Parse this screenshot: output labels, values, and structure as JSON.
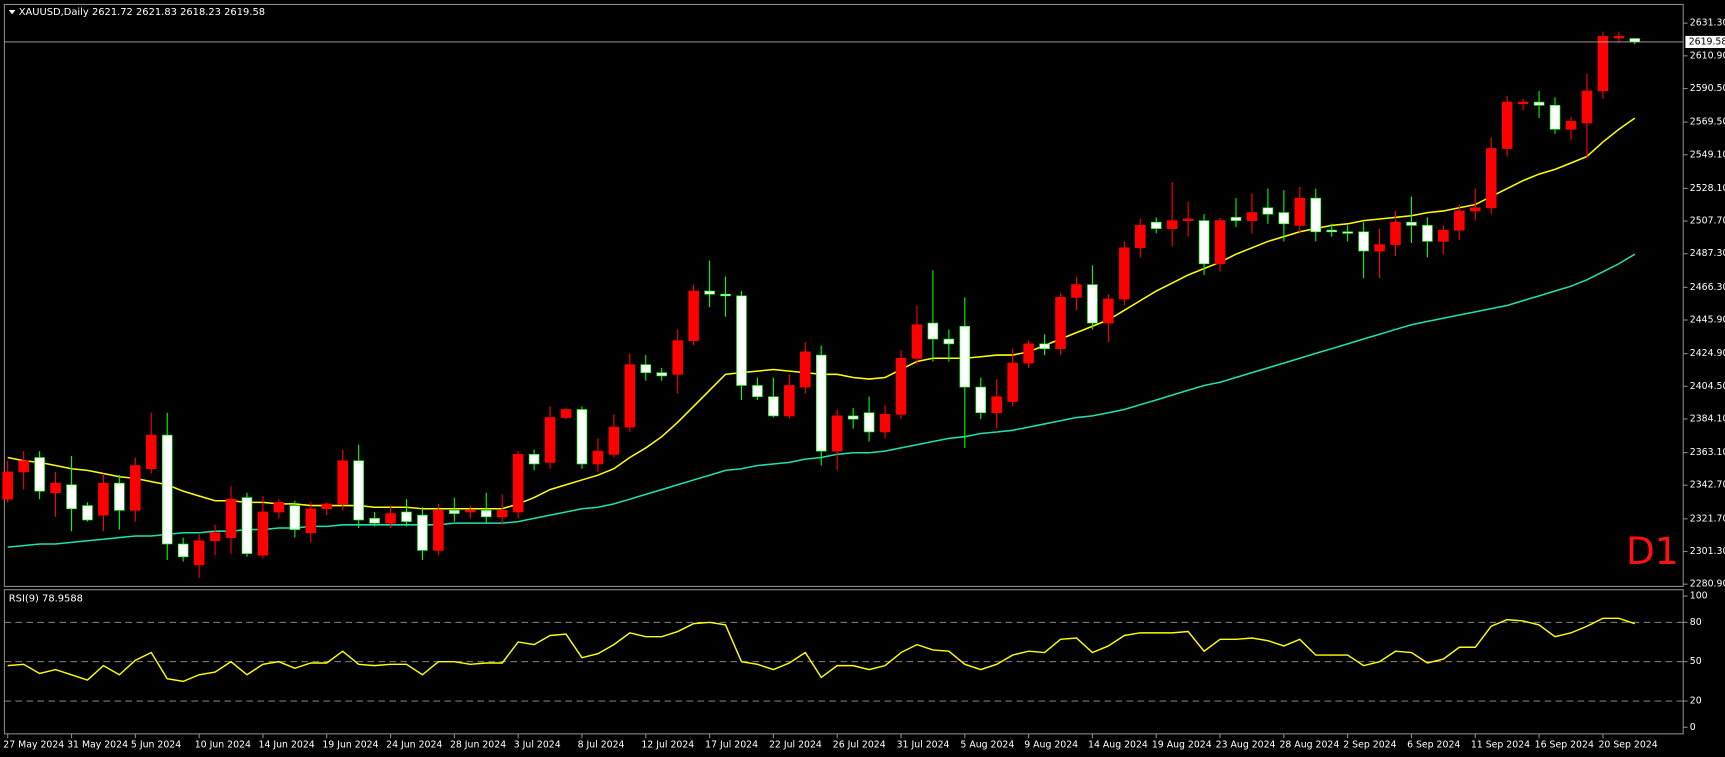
{
  "chart_data": [
    {
      "type": "candlestick",
      "symbol": "XAUUSD,Daily",
      "timeframe_label": "D1",
      "up_color": "#ff0000",
      "down_color": "#ffffff",
      "down_wick_color": "#00ff00",
      "categories": [
        "27 May 2024",
        null,
        null,
        null,
        "31 May 2024",
        null,
        null,
        null,
        "5 Jun 2024",
        null,
        null,
        null,
        "10 Jun 2024",
        null,
        null,
        null,
        "14 Jun 2024",
        null,
        null,
        null,
        "19 Jun 2024",
        null,
        null,
        null,
        "24 Jun 2024",
        null,
        null,
        null,
        "28 Jun 2024",
        null,
        null,
        null,
        "3 Jul 2024",
        null,
        null,
        null,
        "8 Jul 2024",
        null,
        null,
        null,
        "12 Jul 2024",
        null,
        null,
        null,
        "17 Jul 2024",
        null,
        null,
        null,
        "22 Jul 2024",
        null,
        null,
        null,
        "26 Jul 2024",
        null,
        null,
        null,
        "31 Jul 2024",
        null,
        null,
        null,
        "5 Aug 2024",
        null,
        null,
        null,
        "9 Aug 2024",
        null,
        null,
        null,
        "14 Aug 2024",
        null,
        null,
        null,
        "19 Aug 2024",
        null,
        null,
        null,
        "23 Aug 2024",
        null,
        null,
        null,
        "28 Aug 2024",
        null,
        null,
        null,
        "2 Sep 2024",
        null,
        null,
        null,
        "6 Sep 2024",
        null,
        null,
        null,
        "11 Sep 2024",
        null,
        null,
        null,
        "16 Sep 2024",
        null,
        null,
        null,
        "20 Sep 2024",
        null,
        null
      ],
      "open": [
        2334,
        2351,
        2360,
        2338,
        2343,
        2330,
        2324,
        2344,
        2327,
        2353,
        2374,
        2306,
        2293,
        2308,
        2310,
        2335,
        2299,
        2326,
        2330,
        2313,
        2328,
        2331,
        2358,
        2322,
        2319,
        2326,
        2324,
        2302,
        2327,
        2326,
        2327,
        2323,
        2326,
        2362,
        2357,
        2385,
        2390,
        2356,
        2362,
        2379,
        2418,
        2413,
        2412,
        2433,
        2464,
        2462,
        2461,
        2405,
        2398,
        2386,
        2404,
        2424,
        2364,
        2386,
        2388,
        2376,
        2387,
        2422,
        2444,
        2434,
        2442,
        2404,
        2388,
        2395,
        2419,
        2431,
        2428,
        2460,
        2468,
        2444,
        2459,
        2491,
        2507,
        2503,
        2508,
        2508,
        2481,
        2510,
        2508,
        2516,
        2513,
        2505,
        2522,
        2502,
        2501,
        2501,
        2489,
        2493,
        2507,
        2505,
        2495,
        2502,
        2514,
        2516,
        2553,
        2581,
        2582,
        2580,
        2565,
        2569,
        2589,
        2622,
        2621.72
      ],
      "high": [
        2358,
        2364,
        2364,
        2351,
        2361,
        2332,
        2350,
        2349,
        2360,
        2388,
        2388,
        2310,
        2312,
        2318,
        2342,
        2338,
        2336,
        2334,
        2333,
        2332,
        2332,
        2365,
        2368,
        2326,
        2330,
        2334,
        2329,
        2331,
        2335,
        2330,
        2338,
        2337,
        2364,
        2365,
        2392,
        2391,
        2392,
        2372,
        2387,
        2425,
        2424,
        2416,
        2440,
        2468,
        2483,
        2473,
        2464,
        2410,
        2410,
        2412,
        2432,
        2430,
        2390,
        2391,
        2398,
        2393,
        2427,
        2455,
        2477,
        2440,
        2460,
        2410,
        2409,
        2428,
        2433,
        2437,
        2463,
        2473,
        2480,
        2462,
        2495,
        2509,
        2510,
        2532,
        2520,
        2512,
        2510,
        2522,
        2525,
        2528,
        2527,
        2529,
        2528,
        2506,
        2505,
        2507,
        2503,
        2514,
        2523,
        2510,
        2505,
        2518,
        2528,
        2560,
        2586,
        2584,
        2589,
        2585,
        2573,
        2600,
        2626,
        2626,
        2621.83
      ],
      "low": [
        2332,
        2340,
        2334,
        2323,
        2314,
        2320,
        2314,
        2315,
        2320,
        2350,
        2296,
        2295,
        2285,
        2299,
        2300,
        2298,
        2297,
        2322,
        2310,
        2307,
        2324,
        2327,
        2316,
        2317,
        2316,
        2317,
        2296,
        2299,
        2320,
        2322,
        2319,
        2318,
        2322,
        2352,
        2353,
        2384,
        2353,
        2351,
        2360,
        2376,
        2408,
        2408,
        2400,
        2430,
        2454,
        2448,
        2396,
        2396,
        2385,
        2384,
        2400,
        2355,
        2352,
        2378,
        2370,
        2372,
        2384,
        2418,
        2420,
        2420,
        2366,
        2384,
        2378,
        2392,
        2416,
        2424,
        2424,
        2452,
        2440,
        2432,
        2455,
        2485,
        2500,
        2492,
        2498,
        2474,
        2476,
        2504,
        2500,
        2506,
        2495,
        2500,
        2495,
        2498,
        2495,
        2472,
        2472,
        2486,
        2494,
        2485,
        2487,
        2496,
        2508,
        2512,
        2548,
        2577,
        2572,
        2562,
        2558,
        2547,
        2584,
        2619,
        2618.23
      ],
      "close": [
        2351,
        2358,
        2339,
        2344,
        2328,
        2321,
        2344,
        2327,
        2355,
        2374,
        2306,
        2298,
        2308,
        2313,
        2334,
        2300,
        2326,
        2332,
        2315,
        2328,
        2331,
        2358,
        2321,
        2319,
        2325,
        2320,
        2302,
        2327,
        2325,
        2327,
        2323,
        2327,
        2362,
        2356,
        2385,
        2390,
        2356,
        2364,
        2379,
        2418,
        2413,
        2411,
        2433,
        2464,
        2462,
        2461,
        2405,
        2398,
        2386,
        2405,
        2426,
        2364,
        2386,
        2384,
        2376,
        2387,
        2422,
        2443,
        2434,
        2431,
        2404,
        2388,
        2398,
        2419,
        2431,
        2428,
        2460,
        2468,
        2444,
        2459,
        2491,
        2505,
        2503,
        2508,
        2509,
        2481,
        2508,
        2508,
        2513,
        2512,
        2506,
        2522,
        2501,
        2501,
        2500,
        2489,
        2493,
        2507,
        2505,
        2495,
        2502,
        2514,
        2516,
        2553,
        2582,
        2582,
        2580,
        2565,
        2570,
        2589,
        2623,
        2623,
        2619.58
      ],
      "ma": [
        {
          "color": "#ffff00",
          "values": [
            2360,
            2358,
            2357,
            2355,
            2353,
            2352,
            2350,
            2348,
            2347,
            2345,
            2343,
            2339,
            2336,
            2333,
            2333,
            2332,
            2332,
            2331,
            2331,
            2330,
            2330,
            2330,
            2330,
            2329,
            2329,
            2329,
            2328,
            2328,
            2328,
            2328,
            2328,
            2328,
            2331,
            2335,
            2340,
            2343,
            2346,
            2349,
            2353,
            2360,
            2366,
            2373,
            2382,
            2392,
            2402,
            2412,
            2413,
            2414,
            2415,
            2414,
            2413,
            2412,
            2412,
            2410,
            2409,
            2410,
            2415,
            2420,
            2422,
            2422,
            2422,
            2423,
            2424,
            2424,
            2426,
            2430,
            2434,
            2438,
            2442,
            2446,
            2452,
            2458,
            2464,
            2469,
            2474,
            2478,
            2482,
            2487,
            2491,
            2495,
            2498,
            2501,
            2503,
            2505,
            2506,
            2508,
            2509,
            2510,
            2511,
            2513,
            2514,
            2516,
            2518,
            2523,
            2528,
            2533,
            2537,
            2540,
            2544,
            2548,
            2557,
            2565,
            2572
          ]
        },
        {
          "color": "#20e0b0",
          "values": [
            2304,
            2305,
            2306,
            2306,
            2307,
            2308,
            2309,
            2310,
            2311,
            2311,
            2312,
            2313,
            2313,
            2314,
            2314,
            2315,
            2315,
            2316,
            2316,
            2317,
            2317,
            2318,
            2318,
            2318,
            2318,
            2318,
            2318,
            2318,
            2319,
            2319,
            2319,
            2319,
            2320,
            2322,
            2324,
            2326,
            2328,
            2329,
            2331,
            2334,
            2337,
            2340,
            2343,
            2346,
            2349,
            2352,
            2353,
            2355,
            2356,
            2357,
            2359,
            2360,
            2362,
            2363,
            2363,
            2364,
            2366,
            2368,
            2370,
            2372,
            2373,
            2375,
            2376,
            2377,
            2379,
            2381,
            2383,
            2385,
            2386,
            2388,
            2390,
            2393,
            2396,
            2399,
            2402,
            2405,
            2407,
            2410,
            2413,
            2416,
            2419,
            2422,
            2425,
            2428,
            2431,
            2434,
            2437,
            2440,
            2443,
            2445,
            2447,
            2449,
            2451,
            2453,
            2455,
            2458,
            2461,
            2464,
            2467,
            2471,
            2476,
            2481,
            2487
          ]
        }
      ],
      "ylim": [
        2279.5,
        2642.3
      ],
      "yticks": [
        {
          "value": 2631.3,
          "label": "2631.30"
        },
        {
          "value": 2610.9,
          "label": "2610.90"
        },
        {
          "value": 2590.5,
          "label": "2590.50"
        },
        {
          "value": 2569.5,
          "label": "2569.50"
        },
        {
          "value": 2549.1,
          "label": "2549.10"
        },
        {
          "value": 2528.1,
          "label": "2528.10"
        },
        {
          "value": 2507.7,
          "label": "2507.70"
        },
        {
          "value": 2487.3,
          "label": "2487.30"
        },
        {
          "value": 2466.3,
          "label": "2466.30"
        },
        {
          "value": 2445.9,
          "label": "2445.90"
        },
        {
          "value": 2424.9,
          "label": "2424.90"
        },
        {
          "value": 2404.5,
          "label": "2404.50"
        },
        {
          "value": 2384.1,
          "label": "2384.10"
        },
        {
          "value": 2363.1,
          "label": "2363.10"
        },
        {
          "value": 2342.7,
          "label": "2342.70"
        },
        {
          "value": 2321.7,
          "label": "2321.70"
        },
        {
          "value": 2301.3,
          "label": "2301.30"
        },
        {
          "value": 2280.9,
          "label": "2280.90"
        }
      ]
    },
    {
      "type": "line",
      "title": "RSI(9)",
      "color": "#ffff00",
      "values": [
        47,
        48,
        41,
        44,
        40,
        36,
        47,
        40,
        51,
        57,
        37,
        35,
        40,
        42,
        50,
        40,
        48,
        50,
        45,
        49,
        49,
        58,
        48,
        47,
        48,
        48,
        40,
        50,
        50,
        48,
        49,
        49,
        65,
        63,
        70,
        71,
        53,
        56,
        63,
        72,
        69,
        69,
        73,
        79,
        80,
        78,
        50,
        48,
        44,
        49,
        57,
        38,
        47,
        47,
        44,
        47,
        57,
        63,
        59,
        58,
        48,
        44,
        48,
        55,
        58,
        57,
        67,
        68,
        57,
        62,
        70,
        72,
        72,
        72,
        73,
        58,
        67,
        67,
        68,
        66,
        62,
        67,
        55,
        55,
        55,
        47,
        50,
        58,
        57,
        49,
        52,
        61,
        61,
        77,
        82,
        81,
        78,
        69,
        72,
        77,
        83,
        83,
        78.9588
      ],
      "ylim": [
        -5,
        104
      ],
      "yticks": [
        100,
        80,
        50,
        20,
        0
      ],
      "levels": [
        80,
        50,
        20
      ]
    }
  ]
}
